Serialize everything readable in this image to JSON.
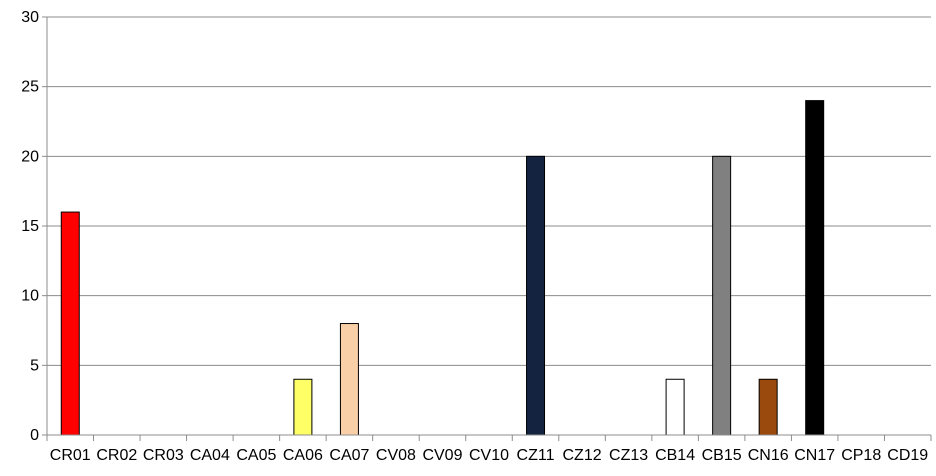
{
  "chart_data": {
    "type": "bar",
    "title": "",
    "xlabel": "",
    "ylabel": "",
    "ylim": [
      0,
      30
    ],
    "yticks": [
      0,
      5,
      10,
      15,
      20,
      25,
      30
    ],
    "grid": true,
    "legend": "none",
    "categories": [
      "CR01",
      "CR02",
      "CR03",
      "CA04",
      "CA05",
      "CA06",
      "CA07",
      "CV08",
      "CV09",
      "CV10",
      "CZ11",
      "CZ12",
      "CZ13",
      "CB14",
      "CB15",
      "CN16",
      "CN17",
      "CP18",
      "CD19"
    ],
    "values": [
      16,
      0,
      0,
      0,
      0,
      4,
      8,
      0,
      0,
      0,
      20,
      0,
      0,
      4,
      20,
      4,
      24,
      0,
      0
    ],
    "colors": [
      "#ff0000",
      "#ffffff",
      "#ffffff",
      "#ffffff",
      "#ffffff",
      "#ffff66",
      "#f9cfa8",
      "#ffffff",
      "#ffffff",
      "#ffffff",
      "#14233f",
      "#ffffff",
      "#ffffff",
      "#ffffff",
      "#808080",
      "#9a4a0c",
      "#000000",
      "#ffffff",
      "#ffffff"
    ]
  }
}
